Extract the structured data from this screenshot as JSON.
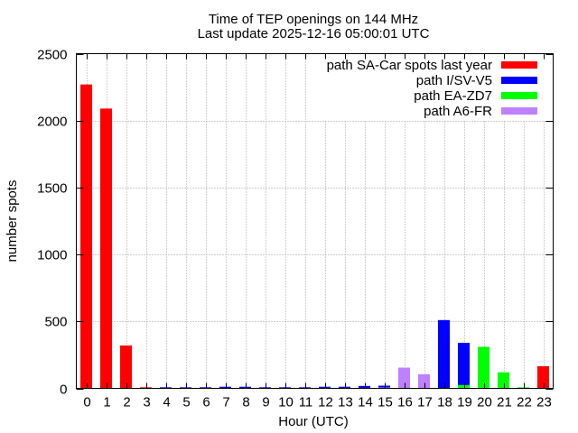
{
  "chart_data": {
    "type": "bar",
    "title": "Time of TEP openings on 144 MHz",
    "subtitle": "Last update 2025-12-16 05:00:01 UTC",
    "xlabel": "Hour (UTC)",
    "ylabel": "number spots",
    "ylim": [
      0,
      2500
    ],
    "yticks": [
      "0",
      "500",
      "1000",
      "1500",
      "2000",
      "2500"
    ],
    "categories": [
      "0",
      "1",
      "2",
      "3",
      "4",
      "5",
      "6",
      "7",
      "8",
      "9",
      "10",
      "11",
      "12",
      "13",
      "14",
      "15",
      "16",
      "17",
      "18",
      "19",
      "20",
      "21",
      "22",
      "23"
    ],
    "grid": true,
    "legend_position": "top-right",
    "series": [
      {
        "name": "path SA-Car spots last year",
        "color": "#ff0000",
        "values": [
          2270,
          2090,
          320,
          8,
          0,
          0,
          0,
          0,
          0,
          0,
          0,
          0,
          0,
          0,
          0,
          0,
          0,
          0,
          0,
          0,
          0,
          0,
          0,
          165
        ]
      },
      {
        "name": "path I/SV-V5",
        "color": "#0000ff",
        "values": [
          0,
          0,
          0,
          0,
          8,
          8,
          8,
          12,
          12,
          8,
          8,
          8,
          12,
          12,
          18,
          20,
          0,
          0,
          510,
          340,
          0,
          0,
          0,
          0
        ]
      },
      {
        "name": "path EA-ZD7",
        "color": "#00ff00",
        "values": [
          0,
          0,
          0,
          0,
          0,
          0,
          0,
          0,
          0,
          0,
          0,
          0,
          0,
          0,
          0,
          0,
          0,
          0,
          0,
          25,
          310,
          120,
          8,
          0
        ]
      },
      {
        "name": "path A6-FR",
        "color": "#bf80ff",
        "values": [
          0,
          0,
          0,
          0,
          0,
          0,
          0,
          0,
          0,
          0,
          0,
          0,
          0,
          0,
          0,
          5,
          155,
          105,
          0,
          0,
          0,
          0,
          0,
          0
        ]
      }
    ]
  }
}
